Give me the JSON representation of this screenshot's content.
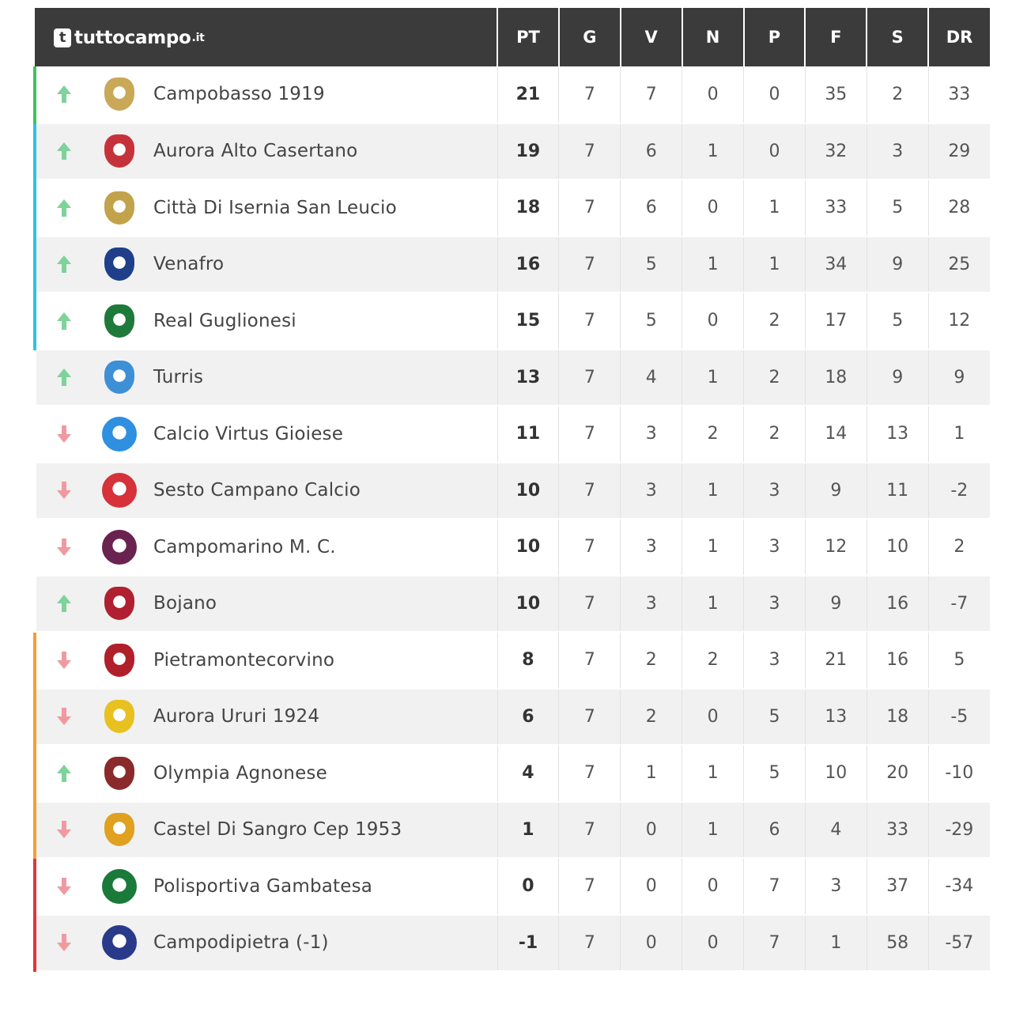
{
  "brand": {
    "name": "tuttocampo",
    "tld": ".it",
    "icon": "t"
  },
  "columns": [
    "PT",
    "G",
    "V",
    "N",
    "P",
    "F",
    "S",
    "DR"
  ],
  "colors": {
    "green": "#3fc35f",
    "cyan": "#2cc3e6",
    "orange": "#f5a030",
    "red": "#e0353b",
    "arrow_up": "#7ed29a",
    "arrow_down": "#ef9aa0"
  },
  "rows": [
    {
      "name": "Campobasso 1919",
      "trend": "up",
      "zone": "green",
      "crest": "campobasso-crest",
      "crest_color": "#c9a858",
      "stats": [
        "21",
        "7",
        "7",
        "0",
        "0",
        "35",
        "2",
        "33"
      ]
    },
    {
      "name": "Aurora Alto Casertano",
      "trend": "up",
      "zone": "cyan",
      "crest": "aurora-alto-casertano-crest",
      "crest_color": "#c6323a",
      "stats": [
        "19",
        "7",
        "6",
        "1",
        "0",
        "32",
        "3",
        "29"
      ]
    },
    {
      "name": "Città Di Isernia San Leucio",
      "trend": "up",
      "zone": "cyan",
      "crest": "isernia-crest",
      "crest_color": "#c2a24a",
      "stats": [
        "18",
        "7",
        "6",
        "0",
        "1",
        "33",
        "5",
        "28"
      ]
    },
    {
      "name": "Venafro",
      "trend": "up",
      "zone": "cyan",
      "crest": "venafro-crest",
      "crest_color": "#1f3f8a",
      "stats": [
        "16",
        "7",
        "5",
        "1",
        "1",
        "34",
        "9",
        "25"
      ]
    },
    {
      "name": "Real Guglionesi",
      "trend": "up",
      "zone": "cyan",
      "crest": "real-guglionesi-crest",
      "crest_color": "#1e7a3a",
      "stats": [
        "15",
        "7",
        "5",
        "0",
        "2",
        "17",
        "5",
        "12"
      ]
    },
    {
      "name": "Turris",
      "trend": "up",
      "zone": "none",
      "crest": "turris-crest",
      "crest_color": "#3d8fd6",
      "stats": [
        "13",
        "7",
        "4",
        "1",
        "2",
        "18",
        "9",
        "9"
      ]
    },
    {
      "name": "Calcio Virtus Gioiese",
      "trend": "down",
      "zone": "none",
      "crest": "virtus-gioiese-crest",
      "crest_color": "#2f8fe0",
      "stats": [
        "11",
        "7",
        "3",
        "2",
        "2",
        "14",
        "13",
        "1"
      ]
    },
    {
      "name": "Sesto Campano Calcio",
      "trend": "down",
      "zone": "none",
      "crest": "sesto-campano-crest",
      "crest_color": "#d5323a",
      "stats": [
        "10",
        "7",
        "3",
        "1",
        "3",
        "9",
        "11",
        "-2"
      ]
    },
    {
      "name": "Campomarino M. C.",
      "trend": "down",
      "zone": "none",
      "crest": "campomarino-crest",
      "crest_color": "#6a2350",
      "stats": [
        "10",
        "7",
        "3",
        "1",
        "3",
        "12",
        "10",
        "2"
      ]
    },
    {
      "name": "Bojano",
      "trend": "up",
      "zone": "none",
      "crest": "bojano-crest",
      "crest_color": "#b02030",
      "stats": [
        "10",
        "7",
        "3",
        "1",
        "3",
        "9",
        "16",
        "-7"
      ]
    },
    {
      "name": "Pietramontecorvino",
      "trend": "down",
      "zone": "orange",
      "crest": "pietramontecorvino-crest",
      "crest_color": "#b0202a",
      "stats": [
        "8",
        "7",
        "2",
        "2",
        "3",
        "21",
        "16",
        "5"
      ]
    },
    {
      "name": "Aurora Ururi 1924",
      "trend": "down",
      "zone": "orange",
      "crest": "aurora-ururi-crest",
      "crest_color": "#e8c020",
      "stats": [
        "6",
        "7",
        "2",
        "0",
        "5",
        "13",
        "18",
        "-5"
      ]
    },
    {
      "name": "Olympia Agnonese",
      "trend": "up",
      "zone": "orange",
      "crest": "olympia-agnonese-crest",
      "crest_color": "#8a2a2a",
      "stats": [
        "4",
        "7",
        "1",
        "1",
        "5",
        "10",
        "20",
        "-10"
      ]
    },
    {
      "name": "Castel Di Sangro Cep 1953",
      "trend": "down",
      "zone": "orange",
      "crest": "castel-di-sangro-crest",
      "crest_color": "#e0a020",
      "stats": [
        "1",
        "7",
        "0",
        "1",
        "6",
        "4",
        "33",
        "-29"
      ]
    },
    {
      "name": "Polisportiva Gambatesa",
      "trend": "down",
      "zone": "red",
      "crest": "gambatesa-crest",
      "crest_color": "#1a7a3a",
      "stats": [
        "0",
        "7",
        "0",
        "0",
        "7",
        "3",
        "37",
        "-34"
      ]
    },
    {
      "name": "Campodipietra (-1)",
      "trend": "down",
      "zone": "red",
      "crest": "campodipietra-crest",
      "crest_color": "#2a3a8a",
      "stats": [
        "-1",
        "7",
        "0",
        "0",
        "7",
        "1",
        "58",
        "-57"
      ]
    }
  ]
}
